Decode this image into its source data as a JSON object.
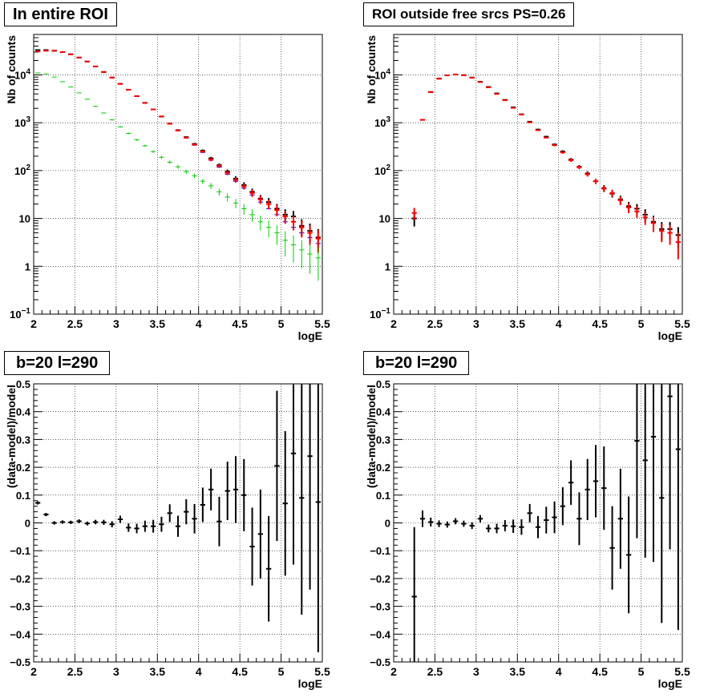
{
  "colors": {
    "data": "#000000",
    "model": "#ff0000",
    "total": "#0000ff",
    "component": "#00cc00",
    "grid": "#000000"
  },
  "chart_data": [
    {
      "type": "scatter",
      "title": "In entire ROI",
      "xlabel": "logE",
      "ylabel": "Nb of counts",
      "xlim": [
        2,
        5.5
      ],
      "ylim": [
        0.1,
        70000
      ],
      "log_y": true,
      "grid": true,
      "x_ticks": [
        "2",
        "2.5",
        "3",
        "3.5",
        "4",
        "4.5",
        "5",
        "5.5"
      ],
      "y_ticks": [
        {
          "v": 0.1,
          "t": "10",
          "sup": "−1"
        },
        {
          "v": 1,
          "t": "1",
          "sup": ""
        },
        {
          "v": 10,
          "t": "10",
          "sup": ""
        },
        {
          "v": 100,
          "t": "10",
          "sup": "2"
        },
        {
          "v": 1000,
          "t": "10",
          "sup": "3"
        },
        {
          "v": 10000,
          "t": "10",
          "sup": "4"
        }
      ],
      "bin_width": 0.1,
      "series": [
        {
          "color": "#000000",
          "x": [
            2.05,
            2.15,
            2.25,
            2.35,
            2.45,
            2.55,
            2.65,
            2.75,
            2.85,
            2.95,
            3.05,
            3.15,
            3.25,
            3.35,
            3.45,
            3.55,
            3.65,
            3.75,
            3.85,
            3.95,
            4.05,
            4.15,
            4.25,
            4.35,
            4.45,
            4.55,
            4.65,
            4.75,
            4.85,
            4.95,
            5.05,
            5.15,
            5.25,
            5.35,
            5.45
          ],
          "y": [
            33000,
            33000,
            32000,
            30000,
            27000,
            23000,
            19000,
            15000,
            11500,
            8800,
            6500,
            4900,
            3600,
            2600,
            1900,
            1350,
            960,
            700,
            500,
            360,
            260,
            180,
            130,
            95,
            68,
            50,
            36,
            26,
            22,
            16,
            12,
            11,
            7,
            5.5,
            4
          ],
          "err": [
            180,
            180,
            180,
            170,
            160,
            150,
            140,
            120,
            110,
            95,
            80,
            70,
            60,
            51,
            44,
            37,
            31,
            26,
            22,
            19,
            16,
            13,
            11,
            10,
            8,
            7,
            6,
            5,
            4.7,
            4,
            3.5,
            3.3,
            2.6,
            2.3,
            2
          ]
        },
        {
          "color": "#0000ff",
          "x": [
            2.05,
            2.15,
            2.25,
            2.35,
            2.45,
            2.55,
            2.65,
            2.75,
            2.85,
            2.95,
            3.05,
            3.15,
            3.25,
            3.35,
            3.45,
            3.55,
            3.65,
            3.75,
            3.85,
            3.95,
            4.05,
            4.15,
            4.25,
            4.35,
            4.45,
            4.55,
            4.65,
            4.75,
            4.85,
            4.95,
            5.05,
            5.15,
            5.25,
            5.35,
            5.45
          ],
          "y": [
            31000,
            32000,
            32000,
            30000,
            27000,
            23000,
            19000,
            15000,
            11500,
            8800,
            6500,
            4900,
            3600,
            2600,
            1900,
            1350,
            960,
            680,
            480,
            340,
            240,
            165,
            118,
            84,
            60,
            43,
            31,
            22,
            16,
            12,
            8.5,
            6.5,
            5,
            4,
            3
          ],
          "err": [
            0,
            0,
            0,
            0,
            0,
            0,
            0,
            0,
            0,
            0,
            0,
            0,
            0,
            0,
            0,
            0,
            0,
            0,
            0,
            0,
            0,
            0,
            0,
            0,
            0,
            0,
            0,
            0,
            0,
            0,
            0,
            0,
            0,
            0,
            0
          ]
        },
        {
          "color": "#ff0000",
          "x": [
            2.05,
            2.15,
            2.25,
            2.35,
            2.45,
            2.55,
            2.65,
            2.75,
            2.85,
            2.95,
            3.05,
            3.15,
            3.25,
            3.35,
            3.45,
            3.55,
            3.65,
            3.75,
            3.85,
            3.95,
            4.05,
            4.15,
            4.25,
            4.35,
            4.45,
            4.55,
            4.65,
            4.75,
            4.85,
            4.95,
            5.05,
            5.15,
            5.25,
            5.35,
            5.45
          ],
          "y": [
            31000,
            32000,
            32000,
            30000,
            27000,
            23000,
            19000,
            15000,
            11500,
            8800,
            6500,
            4900,
            3600,
            2600,
            1900,
            1350,
            960,
            690,
            490,
            350,
            250,
            170,
            125,
            90,
            64,
            47,
            34,
            25,
            20,
            15,
            11,
            8.5,
            6.5,
            5,
            3.8
          ],
          "err": [
            170,
            175,
            175,
            170,
            160,
            150,
            140,
            120,
            110,
            95,
            80,
            70,
            60,
            51,
            44,
            37,
            31,
            26,
            22,
            19,
            16,
            13,
            11,
            9.5,
            8,
            6.8,
            5.8,
            5,
            4.5,
            3.9,
            3.3,
            2.9,
            2.5,
            2.2,
            1.9
          ]
        },
        {
          "color": "#00cc00",
          "x": [
            2.05,
            2.15,
            2.25,
            2.35,
            2.45,
            2.55,
            2.65,
            2.75,
            2.85,
            2.95,
            3.05,
            3.15,
            3.25,
            3.35,
            3.45,
            3.55,
            3.65,
            3.75,
            3.85,
            3.95,
            4.05,
            4.15,
            4.25,
            4.35,
            4.45,
            4.55,
            4.65,
            4.75,
            4.85,
            4.95,
            5.05,
            5.15,
            5.25,
            5.35,
            5.45
          ],
          "y": [
            11000,
            10500,
            9000,
            7200,
            5600,
            4200,
            3100,
            2200,
            1600,
            1150,
            820,
            600,
            440,
            330,
            250,
            190,
            150,
            120,
            95,
            78,
            60,
            48,
            36,
            28,
            21,
            16,
            12,
            8.5,
            6.5,
            5,
            3.5,
            2.8,
            2.2,
            1.8,
            1.5
          ],
          "err": [
            105,
            100,
            95,
            85,
            75,
            65,
            56,
            47,
            40,
            34,
            29,
            24,
            21,
            18,
            16,
            14,
            12,
            11,
            9.7,
            8.8,
            7.7,
            6.9,
            6,
            5.3,
            4.6,
            4,
            3.5,
            2.9,
            2.5,
            2.2,
            1.9,
            1.6,
            1.3,
            1.1,
            1
          ]
        }
      ]
    },
    {
      "type": "scatter",
      "title": "ROI outside free srcs PS=0.26",
      "xlabel": "logE",
      "ylabel": "Nb of counts",
      "xlim": [
        2,
        5.5
      ],
      "ylim": [
        0.1,
        70000
      ],
      "log_y": true,
      "grid": true,
      "x_ticks": [
        "2",
        "2.5",
        "3",
        "3.5",
        "4",
        "4.5",
        "5",
        "5.5"
      ],
      "y_ticks": [
        {
          "v": 0.1,
          "t": "10",
          "sup": "−1"
        },
        {
          "v": 1,
          "t": "1",
          "sup": ""
        },
        {
          "v": 10,
          "t": "10",
          "sup": ""
        },
        {
          "v": 100,
          "t": "10",
          "sup": "2"
        },
        {
          "v": 1000,
          "t": "10",
          "sup": "3"
        },
        {
          "v": 10000,
          "t": "10",
          "sup": "4"
        }
      ],
      "bin_width": 0.1,
      "series": [
        {
          "color": "#000000",
          "x": [
            2.25,
            2.35,
            2.45,
            2.55,
            2.65,
            2.75,
            2.85,
            2.95,
            3.05,
            3.15,
            3.25,
            3.35,
            3.45,
            3.55,
            3.65,
            3.75,
            3.85,
            3.95,
            4.05,
            4.15,
            4.25,
            4.35,
            4.45,
            4.55,
            4.65,
            4.75,
            4.85,
            4.95,
            5.05,
            5.15,
            5.25,
            5.35,
            5.45
          ],
          "y": [
            10,
            1150,
            4400,
            8400,
            9800,
            10200,
            9900,
            8800,
            7200,
            5600,
            4100,
            3000,
            2100,
            1500,
            1050,
            720,
            510,
            350,
            250,
            170,
            120,
            87,
            60,
            43,
            33,
            25,
            18,
            16,
            12,
            8.5,
            6,
            6,
            4.5
          ],
          "err": [
            3.2,
            34,
            66,
            92,
            99,
            101,
            100,
            94,
            85,
            75,
            64,
            55,
            46,
            39,
            32,
            27,
            23,
            19,
            16,
            13,
            11,
            9.3,
            7.7,
            6.6,
            5.7,
            5,
            4.2,
            4,
            3.5,
            2.9,
            2.4,
            2.4,
            2.1
          ]
        },
        {
          "color": "#ff0000",
          "x": [
            2.25,
            2.35,
            2.45,
            2.55,
            2.65,
            2.75,
            2.85,
            2.95,
            3.05,
            3.15,
            3.25,
            3.35,
            3.45,
            3.55,
            3.65,
            3.75,
            3.85,
            3.95,
            4.05,
            4.15,
            4.25,
            4.35,
            4.45,
            4.55,
            4.65,
            4.75,
            4.85,
            4.95,
            5.05,
            5.15,
            5.25,
            5.35,
            5.45
          ],
          "y": [
            13,
            1150,
            4350,
            8300,
            9800,
            10200,
            9800,
            8700,
            7100,
            5500,
            4000,
            2950,
            2050,
            1480,
            1020,
            700,
            490,
            340,
            240,
            165,
            118,
            84,
            60,
            42,
            34,
            24,
            17,
            14,
            10.5,
            8,
            5.5,
            5,
            3.2
          ],
          "err": [
            3.6,
            34,
            66,
            91,
            99,
            101,
            99,
            93,
            84,
            74,
            63,
            54,
            45,
            38,
            32,
            26,
            22,
            18,
            15.5,
            12.8,
            10.9,
            9.2,
            7.7,
            6.5,
            5.8,
            4.9,
            4.1,
            3.7,
            3.2,
            2.8,
            2.3,
            2.2,
            1.8
          ]
        }
      ]
    },
    {
      "type": "scatter",
      "title": "b=20 l=290",
      "xlabel": "logE",
      "ylabel": "(data-model)/model",
      "xlim": [
        2,
        5.5
      ],
      "ylim": [
        -0.5,
        0.5
      ],
      "log_y": false,
      "grid": true,
      "x_ticks": [
        "2",
        "2.5",
        "3",
        "3.5",
        "4",
        "4.5",
        "5",
        "5.5"
      ],
      "y_ticks": [
        {
          "v": -0.5,
          "t": "−0.5"
        },
        {
          "v": -0.4,
          "t": "−0.4"
        },
        {
          "v": -0.3,
          "t": "−0.3"
        },
        {
          "v": -0.2,
          "t": "−0.2"
        },
        {
          "v": -0.1,
          "t": "−0.1"
        },
        {
          "v": 0,
          "t": "0"
        },
        {
          "v": 0.1,
          "t": "0.1"
        },
        {
          "v": 0.2,
          "t": "0.2"
        },
        {
          "v": 0.3,
          "t": "0.3"
        },
        {
          "v": 0.4,
          "t": "0.4"
        },
        {
          "v": 0.5,
          "t": "0.5"
        }
      ],
      "bin_width": 0.1,
      "series": [
        {
          "color": "#000000",
          "x": [
            2.05,
            2.15,
            2.25,
            2.35,
            2.45,
            2.55,
            2.65,
            2.75,
            2.85,
            2.95,
            3.05,
            3.15,
            3.25,
            3.35,
            3.45,
            3.55,
            3.65,
            3.75,
            3.85,
            3.95,
            4.05,
            4.15,
            4.25,
            4.35,
            4.45,
            4.55,
            4.65,
            4.75,
            4.85,
            4.95,
            5.05,
            5.15,
            5.25,
            5.35,
            5.45
          ],
          "y": [
            0.072,
            0.03,
            0,
            0.003,
            0.002,
            0.006,
            -0.002,
            0.003,
            0.002,
            -0.005,
            0.013,
            -0.017,
            -0.02,
            -0.012,
            -0.012,
            -0.005,
            0.035,
            -0.012,
            0.04,
            0.015,
            0.065,
            0.12,
            0.005,
            0.115,
            0.12,
            0.1,
            -0.085,
            -0.04,
            -0.165,
            0.205,
            0.07,
            0.25,
            0.09,
            0.24,
            0.075
          ],
          "err": [
            0.006,
            0.006,
            0.006,
            0.006,
            0.006,
            0.007,
            0.007,
            0.008,
            0.009,
            0.011,
            0.013,
            0.015,
            0.017,
            0.02,
            0.023,
            0.027,
            0.032,
            0.038,
            0.045,
            0.053,
            0.062,
            0.075,
            0.089,
            0.105,
            0.12,
            0.13,
            0.14,
            0.16,
            0.19,
            0.27,
            0.26,
            0.4,
            0.42,
            0.48,
            0.54
          ]
        }
      ]
    },
    {
      "type": "scatter",
      "title": "b=20 l=290",
      "xlabel": "logE",
      "ylabel": "(data-model)/model",
      "xlim": [
        2,
        5.5
      ],
      "ylim": [
        -0.5,
        0.5
      ],
      "log_y": false,
      "grid": true,
      "x_ticks": [
        "2",
        "2.5",
        "3",
        "3.5",
        "4",
        "4.5",
        "5",
        "5.5"
      ],
      "y_ticks": [
        {
          "v": -0.5,
          "t": "−0.5"
        },
        {
          "v": -0.4,
          "t": "−0.4"
        },
        {
          "v": -0.3,
          "t": "−0.3"
        },
        {
          "v": -0.2,
          "t": "−0.2"
        },
        {
          "v": -0.1,
          "t": "−0.1"
        },
        {
          "v": 0,
          "t": "0"
        },
        {
          "v": 0.1,
          "t": "0.1"
        },
        {
          "v": 0.2,
          "t": "0.2"
        },
        {
          "v": 0.3,
          "t": "0.3"
        },
        {
          "v": 0.4,
          "t": "0.4"
        },
        {
          "v": 0.5,
          "t": "0.5"
        }
      ],
      "bin_width": 0.1,
      "series": [
        {
          "color": "#000000",
          "x": [
            2.25,
            2.35,
            2.45,
            2.55,
            2.65,
            2.75,
            2.85,
            2.95,
            3.05,
            3.15,
            3.25,
            3.35,
            3.45,
            3.55,
            3.65,
            3.75,
            3.85,
            3.95,
            4.05,
            4.15,
            4.25,
            4.35,
            4.45,
            4.55,
            4.65,
            4.75,
            4.85,
            4.95,
            5.05,
            5.15,
            5.25,
            5.35,
            5.45
          ],
          "y": [
            -0.265,
            0.015,
            0.003,
            -0.003,
            -0.006,
            0.006,
            -0.003,
            -0.01,
            0.015,
            -0.02,
            -0.02,
            -0.01,
            -0.012,
            -0.015,
            0.035,
            -0.015,
            0.01,
            0.02,
            0.06,
            0.145,
            0.015,
            0.12,
            0.15,
            0.125,
            -0.09,
            0.015,
            -0.115,
            0.295,
            0.225,
            0.31,
            0.09,
            0.455,
            0.265
          ],
          "err": [
            0.25,
            0.03,
            0.016,
            0.012,
            0.011,
            0.011,
            0.011,
            0.012,
            0.013,
            0.014,
            0.017,
            0.02,
            0.024,
            0.028,
            0.033,
            0.04,
            0.048,
            0.057,
            0.068,
            0.08,
            0.095,
            0.11,
            0.13,
            0.15,
            0.15,
            0.18,
            0.21,
            0.35,
            0.35,
            0.45,
            0.45,
            0.55,
            0.65
          ]
        }
      ]
    }
  ]
}
